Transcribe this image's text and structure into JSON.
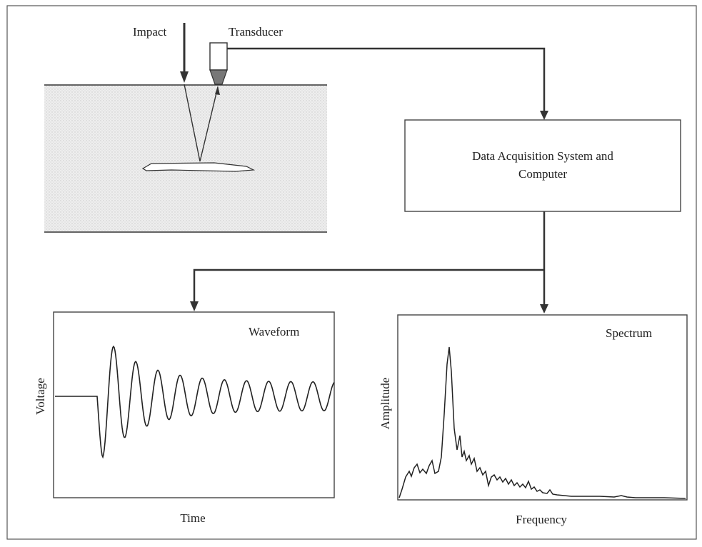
{
  "diagram": {
    "labels": {
      "impact": "Impact",
      "transducer": "Transducer"
    },
    "system_box": {
      "lines": [
        "Data Acquisition System and",
        "Computer"
      ]
    },
    "waveform_panel": {
      "title": "Waveform",
      "y_label": "Voltage",
      "x_label": "Time"
    },
    "spectrum_panel": {
      "title": "Spectrum",
      "y_label": "Amplitude",
      "x_label": "Frequency"
    }
  }
}
